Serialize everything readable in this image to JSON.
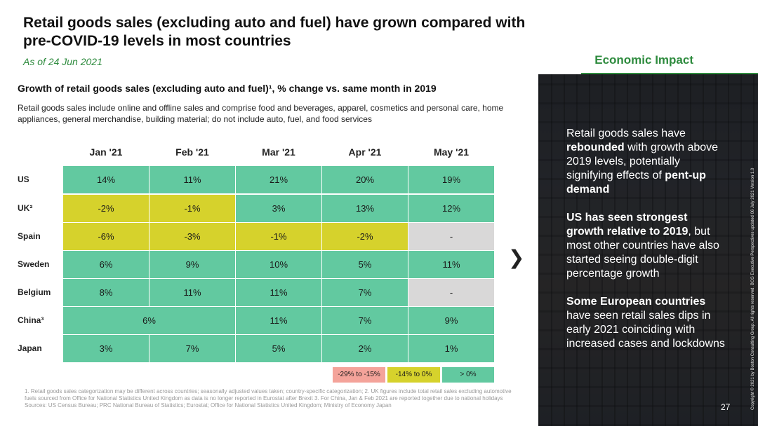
{
  "header": {
    "title": "Retail goods sales (excluding auto and fuel) have grown compared with pre-COVID-19 levels in most countries",
    "date": "As of 24 Jun 2021",
    "section": "Economic Impact"
  },
  "chart_data": {
    "type": "table",
    "title": "Growth of retail goods sales (excluding auto and fuel)¹, % change vs. same month in 2019",
    "subtitle": "Retail goods sales include online and offline sales and comprise food and beverages, apparel, cosmetics and personal care, home appliances, general merchandise, building material; do not include auto, fuel, and food services",
    "columns": [
      "Jan '21",
      "Feb '21",
      "Mar '21",
      "Apr '21",
      "May '21"
    ],
    "rows": [
      {
        "label": "US",
        "values": [
          "14%",
          "11%",
          "21%",
          "20%",
          "19%"
        ]
      },
      {
        "label": "UK²",
        "values": [
          "-2%",
          "-1%",
          "3%",
          "13%",
          "12%"
        ]
      },
      {
        "label": "Spain",
        "values": [
          "-6%",
          "-3%",
          "-1%",
          "-2%",
          "-"
        ]
      },
      {
        "label": "Sweden",
        "values": [
          "6%",
          "9%",
          "10%",
          "5%",
          "11%"
        ]
      },
      {
        "label": "Belgium",
        "values": [
          "8%",
          "11%",
          "11%",
          "7%",
          "-"
        ]
      },
      {
        "label": "China³",
        "values": [
          "6%",
          "11%",
          "7%",
          "9%"
        ],
        "merged_first_two": true
      },
      {
        "label": "Japan",
        "values": [
          "3%",
          "7%",
          "5%",
          "2%",
          "1%"
        ]
      }
    ],
    "legend": [
      "-29% to -15%",
      "-14% to 0%",
      "> 0%"
    ],
    "colors": {
      "positive": "#62c9a0",
      "slight_negative": "#d6d22c",
      "strong_negative": "#f4a39a",
      "na": "#d9d8d8"
    }
  },
  "footnote": {
    "notes": "1. Retail goods sales categorization may be different across countries; seasonally adjusted values taken; country-specific categorization; 2. UK figures include total retail sales excluding automotive fuels sourced from Office for National Statistics United Kingdom as data is no longer reported in Eurostat after Brexit 3. For China, Jan & Feb 2021 are reported together due to national holidays",
    "sources": "Sources: US Census Bureau; PRC National Bureau of Statistics; Eurostat; Office for National Statistics United Kingdom; Ministry of Economy Japan"
  },
  "side_panel": {
    "p1_a": "Retail goods sales have ",
    "p1_b": "rebounded",
    "p1_c": " with growth above 2019 levels, potentially signifying effects of ",
    "p1_d": "pent-up demand",
    "p2_a": "US has seen strongest growth relative to 2019",
    "p2_b": ", but most other countries have also started seeing double-digit percentage growth",
    "p3_a": "Some European countries",
    "p3_b": " have seen retail sales dips in early 2021 coinciding with increased cases and lockdowns",
    "copyright": "Copyright © 2021 by Boston Consulting Group. All rights reserved. BCG Executive Perspectives updated 06 July 2021 Version 1.0",
    "page_number": "27"
  },
  "nav": {
    "next_icon": "chevron-right-icon"
  }
}
